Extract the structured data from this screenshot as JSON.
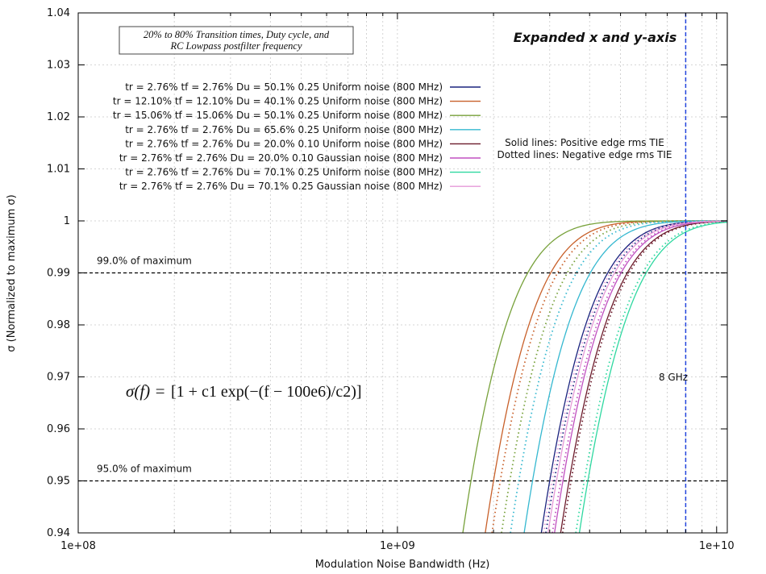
{
  "chart_data": {
    "type": "line",
    "title": "Expanded x and y-axis",
    "subtitle": [
      "20% to 80% Transition times, Duty cycle, and",
      "RC Lowpass postfilter frequency"
    ],
    "xlabel": "Modulation Noise Bandwidth (Hz)",
    "ylabel": "σ (Normalized to maximum σ)",
    "xscale": "log",
    "xlim": [
      100000000,
      10800000000
    ],
    "ylim": [
      0.94,
      1.04
    ],
    "x_ticks": [
      {
        "value": 100000000,
        "label": "1e+08"
      },
      {
        "value": 1000000000,
        "label": "1e+09"
      },
      {
        "value": 10000000000,
        "label": "1e+10"
      }
    ],
    "y_ticks": [
      {
        "value": 0.94,
        "label": "0.94"
      },
      {
        "value": 0.95,
        "label": "0.95"
      },
      {
        "value": 0.96,
        "label": "0.96"
      },
      {
        "value": 0.97,
        "label": "0.97"
      },
      {
        "value": 0.98,
        "label": "0.98"
      },
      {
        "value": 0.99,
        "label": "0.99"
      },
      {
        "value": 1.0,
        "label": "1"
      },
      {
        "value": 1.01,
        "label": "1.01"
      },
      {
        "value": 1.02,
        "label": "1.02"
      },
      {
        "value": 1.03,
        "label": "1.03"
      },
      {
        "value": 1.04,
        "label": "1.04"
      }
    ],
    "grid": true,
    "legend_position": "top-left",
    "formula": {
      "lhs": "σ(f) =",
      "text": "[1 + c1 exp(−(f − 100e6)/c2)]"
    },
    "annotations": {
      "solid_note": "Solid lines: Positive edge rms TIE",
      "dotted_note": "Dotted lines: Negative edge rms TIE",
      "marker_label": "8 GHz",
      "marker_x": 8000000000
    },
    "reference_lines": [
      {
        "y": 0.99,
        "label": "99.0% of maximum"
      },
      {
        "y": 0.95,
        "label": "95.0% of maximum"
      }
    ],
    "series": [
      {
        "name": "tr = 2.76% tf = 2.76% Du = 50.1% 0.25 Uniform noise (800 MHz)",
        "color": "#1a237e",
        "x95": 3000000000,
        "dotted_x95": 3100000000
      },
      {
        "name": "tr = 12.10% tf = 12.10% Du = 40.1% 0.25 Uniform noise (800 MHz)",
        "color": "#c8602a",
        "x95": 2000000000,
        "dotted_x95": 2100000000
      },
      {
        "name": "tr = 15.06% tf = 15.06% Du = 50.1% 0.25 Uniform noise (800 MHz)",
        "color": "#77a13a",
        "x95": 1700000000,
        "dotted_x95": 2250000000
      },
      {
        "name": "tr = 2.76% tf = 2.76% Du = 65.6% 0.25 Uniform noise (800 MHz)",
        "color": "#35b8d0",
        "x95": 2650000000,
        "dotted_x95": 2400000000
      },
      {
        "name": "tr = 2.76% tf = 2.76% Du = 20.0% 0.10 Uniform noise (800 MHz)",
        "color": "#6b1a2a",
        "x95": 3450000000,
        "dotted_x95": 3500000000
      },
      {
        "name": "tr = 2.76% tf = 2.76% Du = 20.0% 0.10 Gaussian noise (800 MHz)",
        "color": "#c050c0",
        "x95": 3300000000,
        "dotted_x95": 3250000000
      },
      {
        "name": "tr = 2.76% tf = 2.76% Du = 70.1% 0.25 Uniform noise (800 MHz)",
        "color": "#2ed8a0",
        "x95": 3950000000,
        "dotted_x95": 3850000000
      },
      {
        "name": "tr = 2.76% tf = 2.76% Du = 70.1% 0.25 Gaussian noise (800 MHz)",
        "color": "#e69ad8",
        "x95": 3150000000,
        "dotted_x95": 3050000000
      }
    ]
  }
}
